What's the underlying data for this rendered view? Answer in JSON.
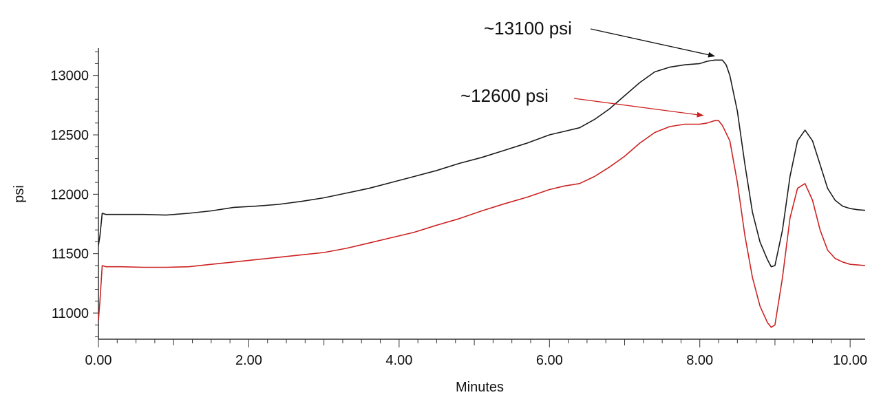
{
  "chart_data": {
    "type": "line",
    "title": "",
    "xlabel": "Minutes",
    "ylabel": "psi",
    "xlim": [
      0,
      10.2
    ],
    "ylim": [
      10780,
      13230
    ],
    "x_ticks": [
      0,
      2,
      4,
      6,
      8,
      10
    ],
    "x_tick_labels": [
      "0.00",
      "2.00",
      "4.00",
      "6.00",
      "8.00",
      "10.00"
    ],
    "y_ticks": [
      11000,
      11500,
      12000,
      12500,
      13000
    ],
    "y_tick_labels": [
      "11000",
      "11500",
      "12000",
      "12500",
      "13000"
    ],
    "grid": false,
    "series": [
      {
        "color": "#1a1a1a",
        "x": [
          0.0,
          0.02,
          0.05,
          0.1,
          0.3,
          0.6,
          0.9,
          1.2,
          1.5,
          1.8,
          2.1,
          2.4,
          2.7,
          3.0,
          3.3,
          3.6,
          3.9,
          4.2,
          4.5,
          4.8,
          5.1,
          5.4,
          5.7,
          6.0,
          6.2,
          6.4,
          6.6,
          6.8,
          7.0,
          7.2,
          7.4,
          7.6,
          7.8,
          8.0,
          8.1,
          8.2,
          8.3,
          8.35,
          8.4,
          8.5,
          8.6,
          8.7,
          8.8,
          8.9,
          8.95,
          9.0,
          9.1,
          9.2,
          9.3,
          9.4,
          9.5,
          9.6,
          9.7,
          9.8,
          9.9,
          10.0,
          10.1,
          10.2
        ],
        "y": [
          11570,
          11650,
          11840,
          11830,
          11830,
          11830,
          11825,
          11840,
          11860,
          11890,
          11900,
          11915,
          11940,
          11970,
          12010,
          12050,
          12100,
          12150,
          12200,
          12260,
          12310,
          12370,
          12430,
          12500,
          12530,
          12560,
          12630,
          12720,
          12830,
          12940,
          13030,
          13070,
          13090,
          13100,
          13120,
          13130,
          13130,
          13090,
          13000,
          12700,
          12250,
          11850,
          11600,
          11450,
          11390,
          11400,
          11700,
          12150,
          12450,
          12540,
          12450,
          12250,
          12050,
          11950,
          11900,
          11880,
          11870,
          11865
        ]
      },
      {
        "color": "#cc2222",
        "x": [
          0.0,
          0.02,
          0.05,
          0.1,
          0.3,
          0.6,
          0.9,
          1.2,
          1.5,
          1.8,
          2.1,
          2.4,
          2.7,
          3.0,
          3.3,
          3.6,
          3.9,
          4.2,
          4.5,
          4.8,
          5.1,
          5.4,
          5.7,
          6.0,
          6.2,
          6.4,
          6.6,
          6.8,
          7.0,
          7.2,
          7.4,
          7.6,
          7.8,
          8.0,
          8.1,
          8.2,
          8.25,
          8.3,
          8.4,
          8.5,
          8.6,
          8.7,
          8.8,
          8.9,
          8.95,
          9.0,
          9.1,
          9.2,
          9.3,
          9.4,
          9.5,
          9.6,
          9.7,
          9.8,
          9.9,
          10.0,
          10.1,
          10.2
        ],
        "y": [
          10940,
          11100,
          11400,
          11390,
          11390,
          11385,
          11385,
          11390,
          11410,
          11430,
          11450,
          11470,
          11490,
          11510,
          11545,
          11590,
          11635,
          11680,
          11740,
          11795,
          11860,
          11920,
          11975,
          12040,
          12070,
          12090,
          12150,
          12230,
          12320,
          12430,
          12520,
          12570,
          12590,
          12590,
          12600,
          12620,
          12620,
          12580,
          12450,
          12100,
          11650,
          11300,
          11060,
          10920,
          10880,
          10900,
          11300,
          11800,
          12050,
          12090,
          11950,
          11700,
          11530,
          11460,
          11430,
          11410,
          11405,
          11400
        ]
      }
    ],
    "annotations": [
      {
        "text": "~13100 psi",
        "target_x": 8.25,
        "target_y": 13140,
        "arrow_color": "#111111"
      },
      {
        "text": "~12600 psi",
        "target_x": 8.1,
        "target_y": 12640,
        "arrow_color": "#cc2222"
      }
    ]
  }
}
